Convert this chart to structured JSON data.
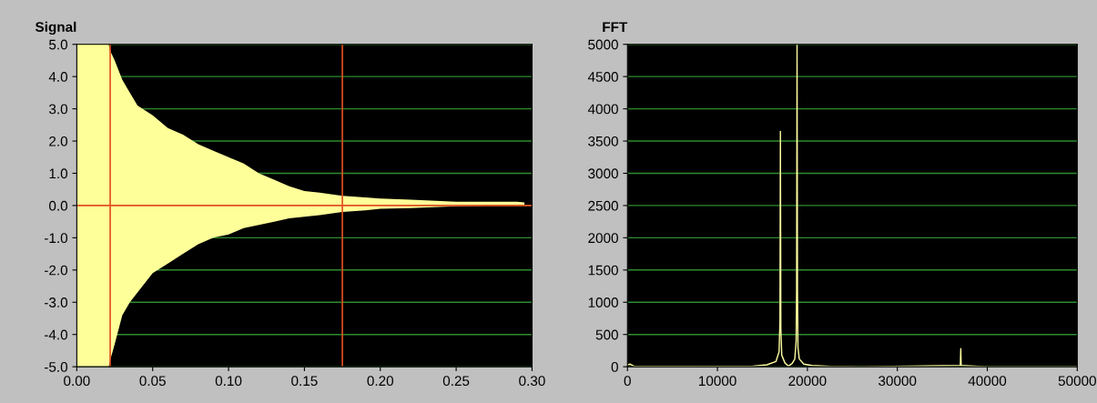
{
  "chart_data": [
    {
      "type": "area",
      "title": "Signal",
      "series": [
        {
          "color": "#ffff99",
          "x": [
            0.0,
            0.021,
            0.022,
            0.025,
            0.03,
            0.035,
            0.04,
            0.05,
            0.06,
            0.07,
            0.08,
            0.09,
            0.1,
            0.11,
            0.12,
            0.13,
            0.14,
            0.15,
            0.16,
            0.175,
            0.19,
            0.2,
            0.22,
            0.25,
            0.27,
            0.29,
            0.295
          ],
          "values": [
            5.0,
            5.0,
            4.8,
            4.5,
            3.9,
            3.5,
            3.1,
            2.8,
            2.4,
            2.2,
            1.9,
            1.7,
            1.5,
            1.3,
            1.0,
            0.8,
            0.6,
            0.45,
            0.4,
            0.3,
            0.25,
            0.22,
            0.18,
            0.12,
            0.12,
            0.12,
            0.1
          ]
        },
        {
          "color": "#ffff99",
          "x": [
            0.0,
            0.021,
            0.022,
            0.025,
            0.03,
            0.035,
            0.04,
            0.05,
            0.06,
            0.07,
            0.08,
            0.09,
            0.1,
            0.11,
            0.12,
            0.13,
            0.14,
            0.15,
            0.16,
            0.175,
            0.19,
            0.2,
            0.22,
            0.25,
            0.27,
            0.29,
            0.295
          ],
          "values": [
            -5.0,
            -5.0,
            -4.8,
            -4.3,
            -3.4,
            -3.0,
            -2.7,
            -2.1,
            -1.8,
            -1.5,
            -1.2,
            -1.0,
            -0.9,
            -0.7,
            -0.6,
            -0.5,
            -0.4,
            -0.35,
            -0.3,
            -0.2,
            -0.15,
            -0.1,
            -0.08,
            -0.02,
            0.0,
            0.0,
            0.0
          ]
        }
      ],
      "xlim": [
        0.0,
        0.3
      ],
      "xticks": [
        {
          "value": 0,
          "label": "0.00"
        },
        {
          "value": 0.05,
          "label": "0.05"
        },
        {
          "value": 0.1,
          "label": "0.10"
        },
        {
          "value": 0.15,
          "label": "0.15"
        },
        {
          "value": 0.2,
          "label": "0.20"
        },
        {
          "value": 0.25,
          "label": "0.25"
        },
        {
          "value": 0.3,
          "label": "0.30"
        }
      ],
      "ylim": [
        -5.0,
        5.0
      ],
      "yticks": [
        {
          "value": -5,
          "label": "-5.0"
        },
        {
          "value": -4,
          "label": "-4.0"
        },
        {
          "value": -3,
          "label": "-3.0"
        },
        {
          "value": -2,
          "label": "-2.0"
        },
        {
          "value": -1,
          "label": "-1.0"
        },
        {
          "value": 0,
          "label": "0.0"
        },
        {
          "value": 1,
          "label": "1.0"
        },
        {
          "value": 2,
          "label": "2.0"
        },
        {
          "value": 3,
          "label": "3.0"
        },
        {
          "value": 4,
          "label": "4.0"
        },
        {
          "value": 5,
          "label": "5.0"
        }
      ],
      "ref_lines": [
        {
          "axis": "x",
          "value": 0.022,
          "color": "#e05020"
        },
        {
          "axis": "x",
          "value": 0.175,
          "color": "#e05020"
        },
        {
          "axis": "y",
          "value": 0.0,
          "color": "#e05020"
        }
      ],
      "grid": "y"
    },
    {
      "type": "line",
      "title": "FFT",
      "series": [
        {
          "color": "#ffffa0",
          "x": [
            0,
            300,
            800,
            2000,
            14000,
            15500,
            16500,
            16850,
            16950,
            17000,
            17050,
            17150,
            17500,
            17900,
            18300,
            18600,
            18750,
            18800,
            18850,
            18900,
            18950,
            19100,
            19600,
            20500,
            22500,
            26000,
            37000,
            37050,
            37100,
            40000,
            50000
          ],
          "values": [
            30,
            40,
            5,
            5,
            10,
            30,
            80,
            230,
            700,
            3650,
            600,
            180,
            60,
            10,
            50,
            120,
            400,
            1180,
            5000,
            1180,
            300,
            120,
            40,
            20,
            5,
            0,
            20,
            280,
            20,
            0,
            0
          ]
        }
      ],
      "xlim": [
        0,
        50000
      ],
      "xticks": [
        0,
        10000,
        20000,
        30000,
        40000,
        50000
      ],
      "ylim": [
        0,
        5000
      ],
      "yticks": [
        0,
        500,
        1000,
        1500,
        2000,
        2500,
        3000,
        3500,
        4000,
        4500,
        5000
      ],
      "grid": "y"
    }
  ]
}
